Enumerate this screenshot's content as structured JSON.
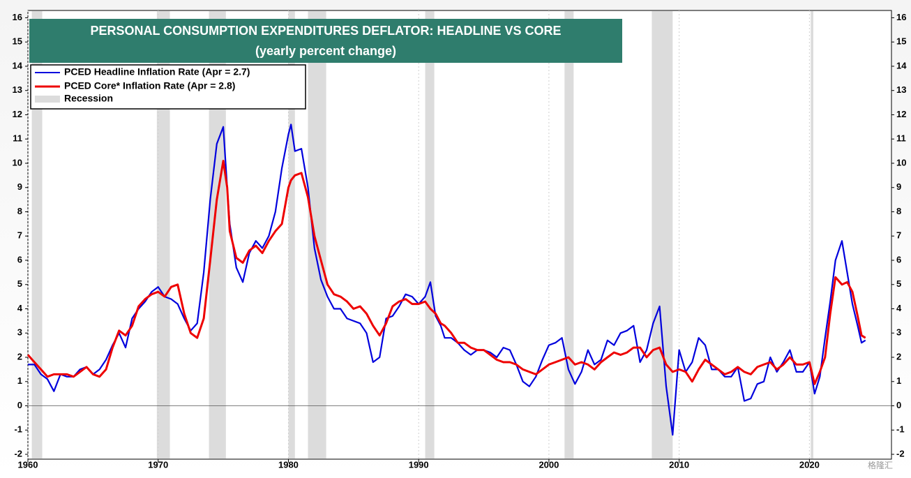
{
  "chart_data": {
    "type": "line",
    "title": "PERSONAL CONSUMPTION EXPENDITURES DEFLATOR: HEADLINE VS CORE",
    "subtitle": "(yearly percent change)",
    "title_color": "#2f7d6d",
    "x": [
      1960,
      1960.5,
      1961,
      1961.5,
      1962,
      1962.5,
      1963,
      1963.5,
      1964,
      1964.5,
      1965,
      1965.5,
      1966,
      1966.5,
      1967,
      1967.5,
      1968,
      1968.5,
      1969,
      1969.5,
      1970,
      1970.5,
      1971,
      1971.5,
      1972,
      1972.5,
      1973,
      1973.5,
      1974,
      1974.5,
      1975,
      1975.3,
      1975.5,
      1976,
      1976.5,
      1977,
      1977.5,
      1978,
      1978.5,
      1979,
      1979.5,
      1980,
      1980.2,
      1980.5,
      1981,
      1981.5,
      1982,
      1982.5,
      1983,
      1983.5,
      1984,
      1984.5,
      1985,
      1985.5,
      1986,
      1986.5,
      1987,
      1987.5,
      1988,
      1988.5,
      1989,
      1989.5,
      1990,
      1990.5,
      1990.9,
      1991.3,
      1991.7,
      1992,
      1992.5,
      1993,
      1993.5,
      1994,
      1994.5,
      1995,
      1995.5,
      1996,
      1996.5,
      1997,
      1997.5,
      1998,
      1998.5,
      1999,
      1999.5,
      2000,
      2000.5,
      2001,
      2001.5,
      2002,
      2002.5,
      2003,
      2003.5,
      2004,
      2004.5,
      2005,
      2005.5,
      2006,
      2006.5,
      2007,
      2007.5,
      2008,
      2008.5,
      2009,
      2009.5,
      2010,
      2010.5,
      2011,
      2011.5,
      2012,
      2012.5,
      2013,
      2013.5,
      2014,
      2014.5,
      2015,
      2015.5,
      2016,
      2016.5,
      2017,
      2017.5,
      2018,
      2018.5,
      2019,
      2019.5,
      2020,
      2020.4,
      2020.8,
      2021.2,
      2021.6,
      2022,
      2022.5,
      2022.9,
      2023.3,
      2023.7,
      2024,
      2024.3
    ],
    "series": [
      {
        "name": "PCED Headline Inflation Rate  (Apr = 2.7)",
        "color": "#0000dd",
        "values": [
          1.7,
          1.7,
          1.3,
          1.1,
          0.6,
          1.3,
          1.2,
          1.2,
          1.5,
          1.6,
          1.3,
          1.5,
          1.9,
          2.5,
          3.0,
          2.4,
          3.6,
          4.0,
          4.3,
          4.7,
          4.9,
          4.5,
          4.4,
          4.2,
          3.6,
          3.1,
          3.4,
          5.5,
          8.5,
          10.8,
          11.5,
          9.0,
          7.5,
          5.7,
          5.1,
          6.3,
          6.8,
          6.5,
          7.0,
          8.0,
          9.8,
          11.2,
          11.6,
          10.5,
          10.6,
          9.0,
          6.5,
          5.2,
          4.5,
          4.0,
          4.0,
          3.6,
          3.5,
          3.4,
          3.0,
          1.8,
          2.0,
          3.6,
          3.7,
          4.1,
          4.6,
          4.5,
          4.2,
          4.5,
          5.1,
          3.7,
          3.3,
          2.8,
          2.8,
          2.6,
          2.3,
          2.1,
          2.3,
          2.3,
          2.2,
          2.0,
          2.4,
          2.3,
          1.7,
          1.0,
          0.8,
          1.2,
          1.9,
          2.5,
          2.6,
          2.8,
          1.5,
          0.9,
          1.4,
          2.3,
          1.7,
          1.9,
          2.7,
          2.5,
          3.0,
          3.1,
          3.3,
          1.8,
          2.3,
          3.4,
          4.1,
          0.8,
          -1.2,
          2.3,
          1.4,
          1.8,
          2.8,
          2.5,
          1.5,
          1.5,
          1.2,
          1.2,
          1.6,
          0.2,
          0.3,
          0.9,
          1.0,
          2.0,
          1.4,
          1.8,
          2.3,
          1.4,
          1.4,
          1.8,
          0.5,
          1.2,
          2.8,
          4.3,
          6.0,
          6.8,
          5.5,
          4.2,
          3.3,
          2.6,
          2.7
        ]
      },
      {
        "name": "PCED Core* Inflation Rate (Apr = 2.8)",
        "color": "#ee0000",
        "values": [
          2.1,
          1.8,
          1.5,
          1.2,
          1.3,
          1.3,
          1.3,
          1.2,
          1.4,
          1.6,
          1.3,
          1.2,
          1.5,
          2.4,
          3.1,
          2.9,
          3.3,
          4.1,
          4.4,
          4.6,
          4.7,
          4.5,
          4.9,
          5.0,
          3.8,
          3.0,
          2.8,
          3.6,
          6.0,
          8.5,
          10.1,
          9.0,
          7.2,
          6.1,
          5.9,
          6.4,
          6.6,
          6.3,
          6.8,
          7.2,
          7.5,
          9.0,
          9.3,
          9.5,
          9.6,
          8.6,
          7.0,
          6.0,
          5.0,
          4.6,
          4.5,
          4.3,
          4.0,
          4.1,
          3.8,
          3.3,
          2.9,
          3.4,
          4.1,
          4.3,
          4.4,
          4.2,
          4.2,
          4.3,
          4.0,
          3.8,
          3.4,
          3.3,
          3.0,
          2.6,
          2.6,
          2.4,
          2.3,
          2.3,
          2.1,
          1.9,
          1.8,
          1.8,
          1.7,
          1.5,
          1.4,
          1.3,
          1.5,
          1.7,
          1.8,
          1.9,
          2.0,
          1.7,
          1.8,
          1.7,
          1.5,
          1.8,
          2.0,
          2.2,
          2.1,
          2.2,
          2.4,
          2.4,
          2.0,
          2.3,
          2.4,
          1.7,
          1.4,
          1.5,
          1.4,
          1.0,
          1.5,
          1.9,
          1.7,
          1.5,
          1.3,
          1.4,
          1.6,
          1.4,
          1.3,
          1.6,
          1.7,
          1.8,
          1.5,
          1.7,
          2.0,
          1.7,
          1.7,
          1.8,
          0.9,
          1.4,
          2.0,
          3.8,
          5.3,
          5.0,
          5.1,
          4.7,
          3.7,
          2.9,
          2.8
        ]
      }
    ],
    "recession": {
      "name": "Recession",
      "color": "#dcdcdc",
      "periods": [
        [
          1960.3,
          1961.1
        ],
        [
          1969.9,
          1970.9
        ],
        [
          1973.9,
          1975.2
        ],
        [
          1980.0,
          1980.5
        ],
        [
          1981.5,
          1982.9
        ],
        [
          1990.5,
          1991.2
        ],
        [
          2001.2,
          2001.9
        ],
        [
          2007.9,
          2009.5
        ],
        [
          2020.1,
          2020.3
        ]
      ]
    },
    "xlim": [
      1960,
      2026.3
    ],
    "xticks": [
      1960,
      1970,
      1980,
      1990,
      2000,
      2010,
      2020
    ],
    "ylim": [
      -2.2,
      16.3
    ],
    "yticks": [
      -2,
      -1,
      0,
      1,
      2,
      3,
      4,
      5,
      6,
      7,
      8,
      9,
      10,
      11,
      12,
      13,
      14,
      15,
      16
    ],
    "y2lim": [
      -2.2,
      16.3
    ],
    "y2ticks": [
      -2,
      -1,
      0,
      1,
      2,
      3,
      4,
      5,
      6,
      7,
      8,
      9,
      10,
      11,
      12,
      13,
      14,
      15,
      16
    ],
    "grid": "x",
    "legend": "upper left",
    "watermark": "格隆汇"
  }
}
